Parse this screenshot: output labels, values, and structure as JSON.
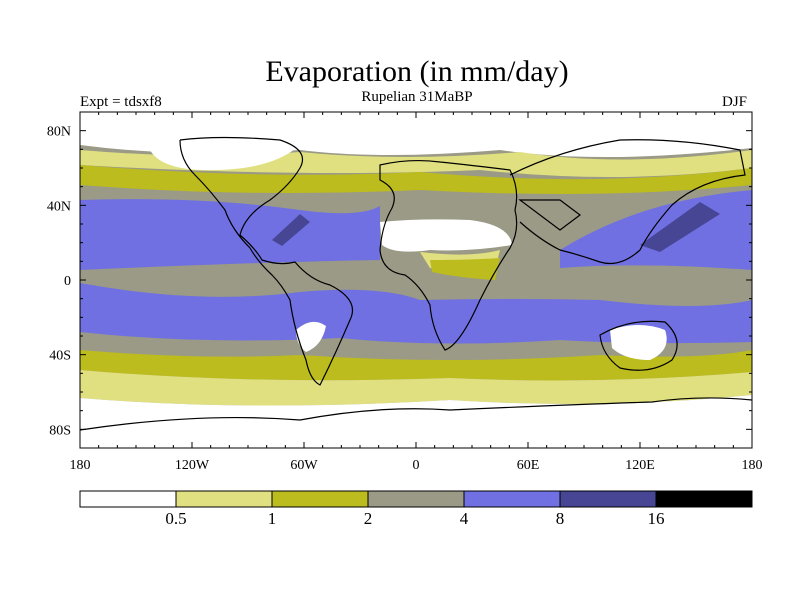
{
  "title": "Evaporation (in mm/day)",
  "subtitle": "Rupelian  31MaBP",
  "experiment": "Expt = tdsxf8",
  "season": "DJF",
  "x_ticks": [
    {
      "label": "180",
      "lon": -180
    },
    {
      "label": "120W",
      "lon": -120
    },
    {
      "label": "60W",
      "lon": -60
    },
    {
      "label": "0",
      "lon": 0
    },
    {
      "label": "60E",
      "lon": 60
    },
    {
      "label": "120E",
      "lon": 120
    },
    {
      "label": "180",
      "lon": 180
    }
  ],
  "y_ticks": [
    {
      "label": "80N",
      "lat": 80
    },
    {
      "label": "40N",
      "lat": 40
    },
    {
      "label": "0",
      "lat": 0
    },
    {
      "label": "40S",
      "lat": -40
    },
    {
      "label": "80S",
      "lat": -80
    }
  ],
  "colorbar": {
    "colors": [
      "#ffffff",
      "#e0e080",
      "#bcbc1e",
      "#9a9a86",
      "#7070e2",
      "#464694",
      "#000000"
    ],
    "labels": [
      "0.5",
      "1",
      "2",
      "4",
      "8",
      "16"
    ]
  }
}
